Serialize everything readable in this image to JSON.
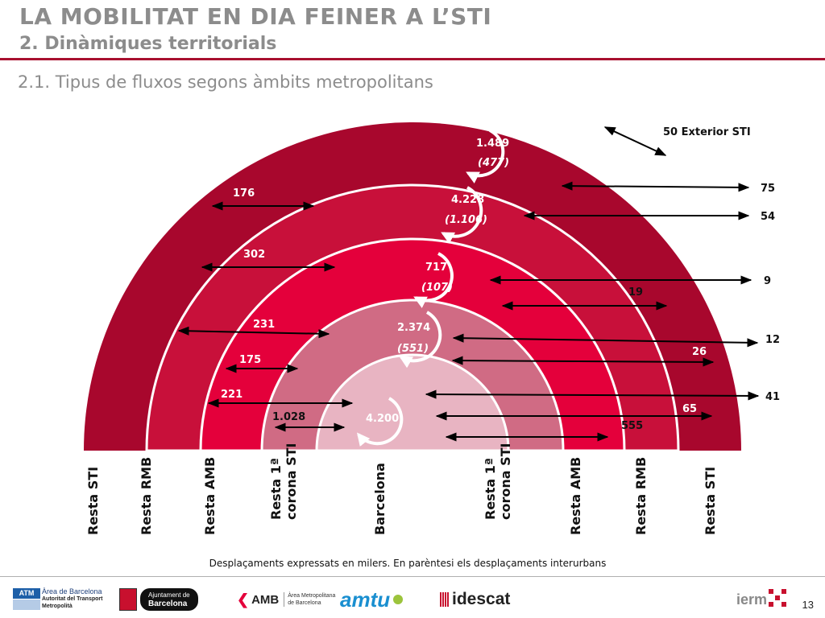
{
  "header": {
    "title": "LA MOBILITAT EN DIA FEINER A L’STI",
    "subtitle": "2. Dinàmiques territorials",
    "section": "2.1. Tipus de fluxos segons àmbits metropolitans"
  },
  "colors": {
    "outer_band": "#a8072d",
    "band_rmb": "#c8103a",
    "band_amb": "#e4003b",
    "band_corona": "#d06b84",
    "center": "#e8b4c2",
    "accent_line": "#a8102f"
  },
  "rings": [
    {
      "name": "Resta STI",
      "value": "1.489",
      "interurban": "(477)"
    },
    {
      "name": "Resta RMB",
      "value": "4.228",
      "interurban": "(1.106)"
    },
    {
      "name": "Resta AMB",
      "value": "717",
      "interurban": "(107)"
    },
    {
      "name": "Resta 1ª corona STI",
      "value": "2.374",
      "interurban": "(551)"
    },
    {
      "name": "Barcelona",
      "value": "4.200"
    }
  ],
  "left_flows": [
    "176",
    "302",
    "231",
    "175",
    "221",
    "1.028"
  ],
  "right_flows": [
    "75",
    "54",
    "9",
    "19",
    "12",
    "26",
    "41",
    "65",
    "555"
  ],
  "exterior": "50 Exterior STI",
  "axis_labels": [
    "Resta STI",
    "Resta RMB",
    "Resta AMB",
    "Resta 1ª\ncorona STI",
    "Barcelona",
    "Resta 1ª\ncorona STI",
    "Resta AMB",
    "Resta RMB",
    "Resta STI"
  ],
  "footnote": "Desplaçaments expressats en milers. En parèntesi els desplaçaments interurbans",
  "logos": {
    "atm_badge": "ATM",
    "atm_line1": "Àrea de Barcelona",
    "atm_line2": "Autoritat del Transport",
    "atm_line3": "Metropolità",
    "ajuntament_line1": "Ajuntament de",
    "ajuntament_line2": "Barcelona",
    "amb": "AMB",
    "amb_line1": "Àrea Metropolitana",
    "amb_line2": "de Barcelona",
    "amtu": "amtu",
    "idescat": "idescat",
    "ierm": "ierm"
  },
  "page_number": "13"
}
